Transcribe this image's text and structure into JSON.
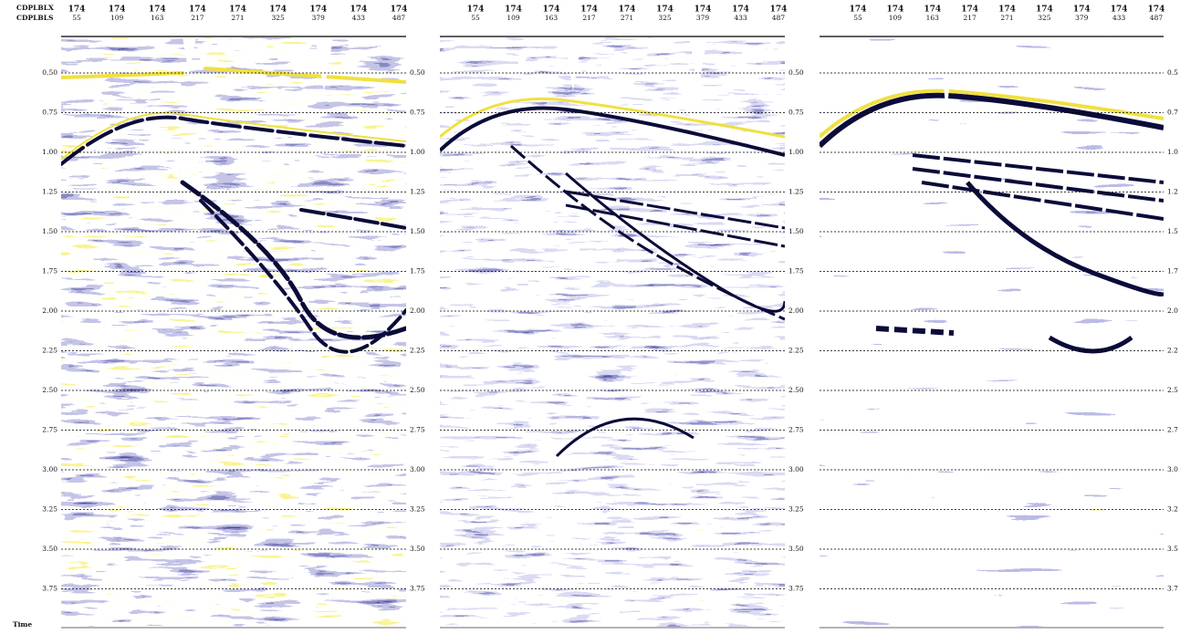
{
  "header": {
    "row1": "CDPLBLX",
    "row2": "CDPLBLS"
  },
  "axis_label": "Time",
  "panels": [
    {
      "inline": [
        "174",
        "174",
        "174",
        "174",
        "174",
        "174",
        "174",
        "174",
        "174"
      ],
      "crossline": [
        "55",
        "109",
        "163",
        "217",
        "271",
        "325",
        "379",
        "433",
        "487"
      ],
      "times_left": [
        "0.50",
        "0.75",
        "1.00",
        "1.25",
        "1.50",
        "1.75",
        "2.00",
        "2.25",
        "2.50",
        "2.75",
        "3.00",
        "3.25",
        "3.50",
        "3.75"
      ],
      "times_right": [
        "0.50",
        "0.75",
        "1.00",
        "1.25",
        "1.50",
        "1.75",
        "2.00",
        "2.25",
        "2.50",
        "2.75",
        "3.00",
        "3.25",
        "3.50",
        "3.75"
      ]
    },
    {
      "inline": [
        "174",
        "174",
        "174",
        "174",
        "174",
        "174",
        "174",
        "174",
        "174"
      ],
      "crossline": [
        "55",
        "109",
        "163",
        "217",
        "271",
        "325",
        "379",
        "433",
        "487"
      ],
      "times_right": [
        "0.50",
        "0.75",
        "1.00",
        "1.25",
        "1.50",
        "1.75",
        "2.00",
        "2.25",
        "2.50",
        "2.75",
        "3.00",
        "3.25",
        "3.50",
        "3.75"
      ]
    },
    {
      "inline": [
        "174",
        "174",
        "174",
        "174",
        "174",
        "174",
        "174",
        "174",
        "174"
      ],
      "crossline": [
        "55",
        "109",
        "163",
        "217",
        "271",
        "325",
        "379",
        "433",
        "487"
      ],
      "times_right": [
        "0.5",
        "0.7",
        "1.0",
        "1.2",
        "1.5",
        "1.7",
        "2.0",
        "2.2",
        "2.5",
        "2.7",
        "3.0",
        "3.2",
        "3.5",
        "3.7"
      ]
    }
  ]
}
